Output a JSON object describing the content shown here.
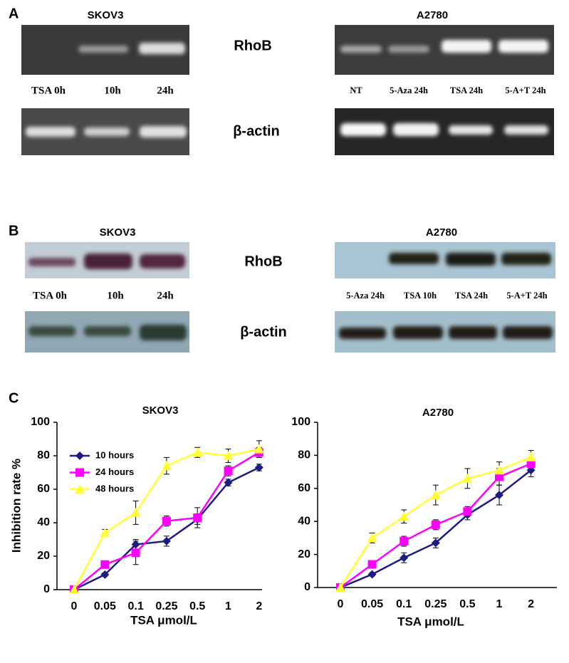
{
  "panel_a": {
    "label": "A",
    "left_title": "SKOV3",
    "right_title": "A2780",
    "top_target": "RhoB",
    "bottom_target": "β-actin",
    "left_lanes": [
      "TSA 0h",
      "10h",
      "24h"
    ],
    "right_lanes": [
      "NT",
      "5-Aza 24h",
      "TSA 24h",
      "5-A+T 24h"
    ]
  },
  "panel_b": {
    "label": "B",
    "left_title": "SKOV3",
    "right_title": "A2780",
    "top_target": "RhoB",
    "bottom_target": "β-actin",
    "left_lanes": [
      "TSA 0h",
      "10h",
      "24h"
    ],
    "right_lanes": [
      "5-Aza 24h",
      "TSA 10h",
      "TSA 24h",
      "5-A+T 24h"
    ]
  },
  "panel_c": {
    "label": "C"
  },
  "chart_data": [
    {
      "type": "line",
      "title": "SKOV3",
      "y_label": "Inhibition rate %",
      "x_label": "TSA μmol/L",
      "categories": [
        "0",
        "0.05",
        "0.1",
        "0.25",
        "0.5",
        "1",
        "2"
      ],
      "ylim": [
        0,
        100
      ],
      "yticks": [
        0,
        20,
        40,
        60,
        80,
        100
      ],
      "legend": "upper left",
      "series": [
        {
          "name": "10 hours",
          "color": "#1c1c84",
          "marker": "diamond",
          "values": [
            0,
            9,
            27,
            29,
            42,
            64,
            73
          ],
          "errors": [
            0,
            1,
            3,
            3,
            3,
            2,
            2
          ]
        },
        {
          "name": "24 hours",
          "color": "#ff00ff",
          "marker": "square",
          "values": [
            0,
            15,
            22,
            41,
            43,
            71,
            82
          ],
          "errors": [
            0,
            2,
            7,
            3,
            6,
            3,
            3
          ]
        },
        {
          "name": "48 hours",
          "color": "#ffff33",
          "marker": "triangle",
          "values": [
            0,
            34,
            46,
            74,
            82,
            80,
            84
          ],
          "errors": [
            0,
            2,
            7,
            5,
            3,
            4,
            5
          ]
        }
      ]
    },
    {
      "type": "line",
      "title": "A2780",
      "x_label": "TSA μmol/L",
      "categories": [
        "0",
        "0.05",
        "0.1",
        "0.25",
        "0.5",
        "1",
        "2"
      ],
      "ylim": [
        0,
        100
      ],
      "yticks": [
        0,
        20,
        40,
        60,
        80,
        100
      ],
      "series": [
        {
          "color": "#1c1c84",
          "marker": "diamond",
          "values": [
            0,
            8,
            18,
            27,
            44,
            56,
            71
          ],
          "errors": [
            0,
            1,
            3,
            3,
            3,
            6,
            4
          ]
        },
        {
          "color": "#ff00ff",
          "marker": "square",
          "values": [
            0,
            14,
            28,
            38,
            46,
            67,
            75
          ],
          "errors": [
            0,
            2,
            3,
            3,
            3,
            5,
            3
          ]
        },
        {
          "color": "#ffff33",
          "marker": "triangle",
          "values": [
            0,
            30,
            43,
            56,
            66,
            71,
            79
          ],
          "errors": [
            0,
            3,
            4,
            6,
            6,
            5,
            4
          ]
        }
      ]
    }
  ]
}
